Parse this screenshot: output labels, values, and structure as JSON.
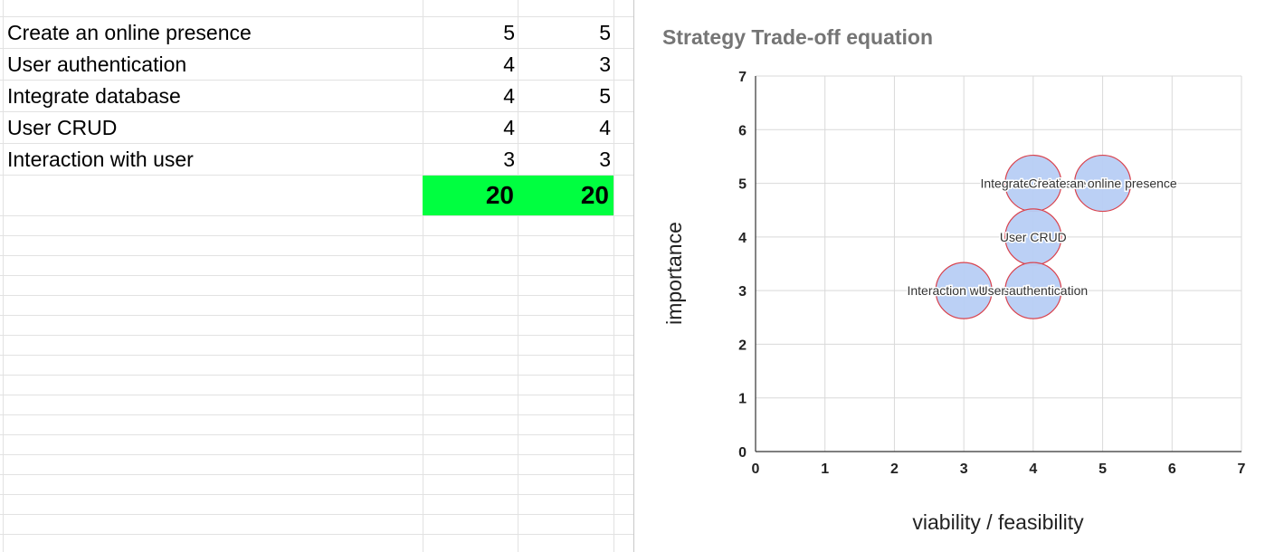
{
  "sheet": {
    "rows": [
      {
        "label": "Create an online presence",
        "col_a": "5",
        "col_b": "5"
      },
      {
        "label": "User authentication",
        "col_a": "4",
        "col_b": "3"
      },
      {
        "label": "Integrate database",
        "col_a": "4",
        "col_b": "5"
      },
      {
        "label": "User CRUD",
        "col_a": "4",
        "col_b": "4"
      },
      {
        "label": "Interaction with user",
        "col_a": "3",
        "col_b": "3"
      }
    ],
    "totals": {
      "col_a": "20",
      "col_b": "20"
    },
    "total_highlight_color": "#00ff40"
  },
  "chart_data": {
    "type": "scatter",
    "title": "Strategy Trade-off equation",
    "xlabel": "viability / feasibility",
    "ylabel": "importance",
    "xlim": [
      0,
      7
    ],
    "ylim": [
      0,
      7
    ],
    "xticks": [
      "0",
      "1",
      "2",
      "3",
      "4",
      "5",
      "6",
      "7"
    ],
    "yticks": [
      "0",
      "1",
      "2",
      "3",
      "4",
      "5",
      "6",
      "7"
    ],
    "grid": true,
    "legend": "none",
    "bubble_color": "#b7cdf4",
    "bubble_stroke": "#d9434e",
    "points": [
      {
        "label": "Integrate database",
        "x": 4,
        "y": 5
      },
      {
        "label": "Create an online presence",
        "x": 5,
        "y": 5
      },
      {
        "label": "User CRUD",
        "x": 4,
        "y": 4
      },
      {
        "label": "Interaction with user",
        "x": 3,
        "y": 3
      },
      {
        "label": "User authentication",
        "x": 4,
        "y": 3
      }
    ]
  }
}
